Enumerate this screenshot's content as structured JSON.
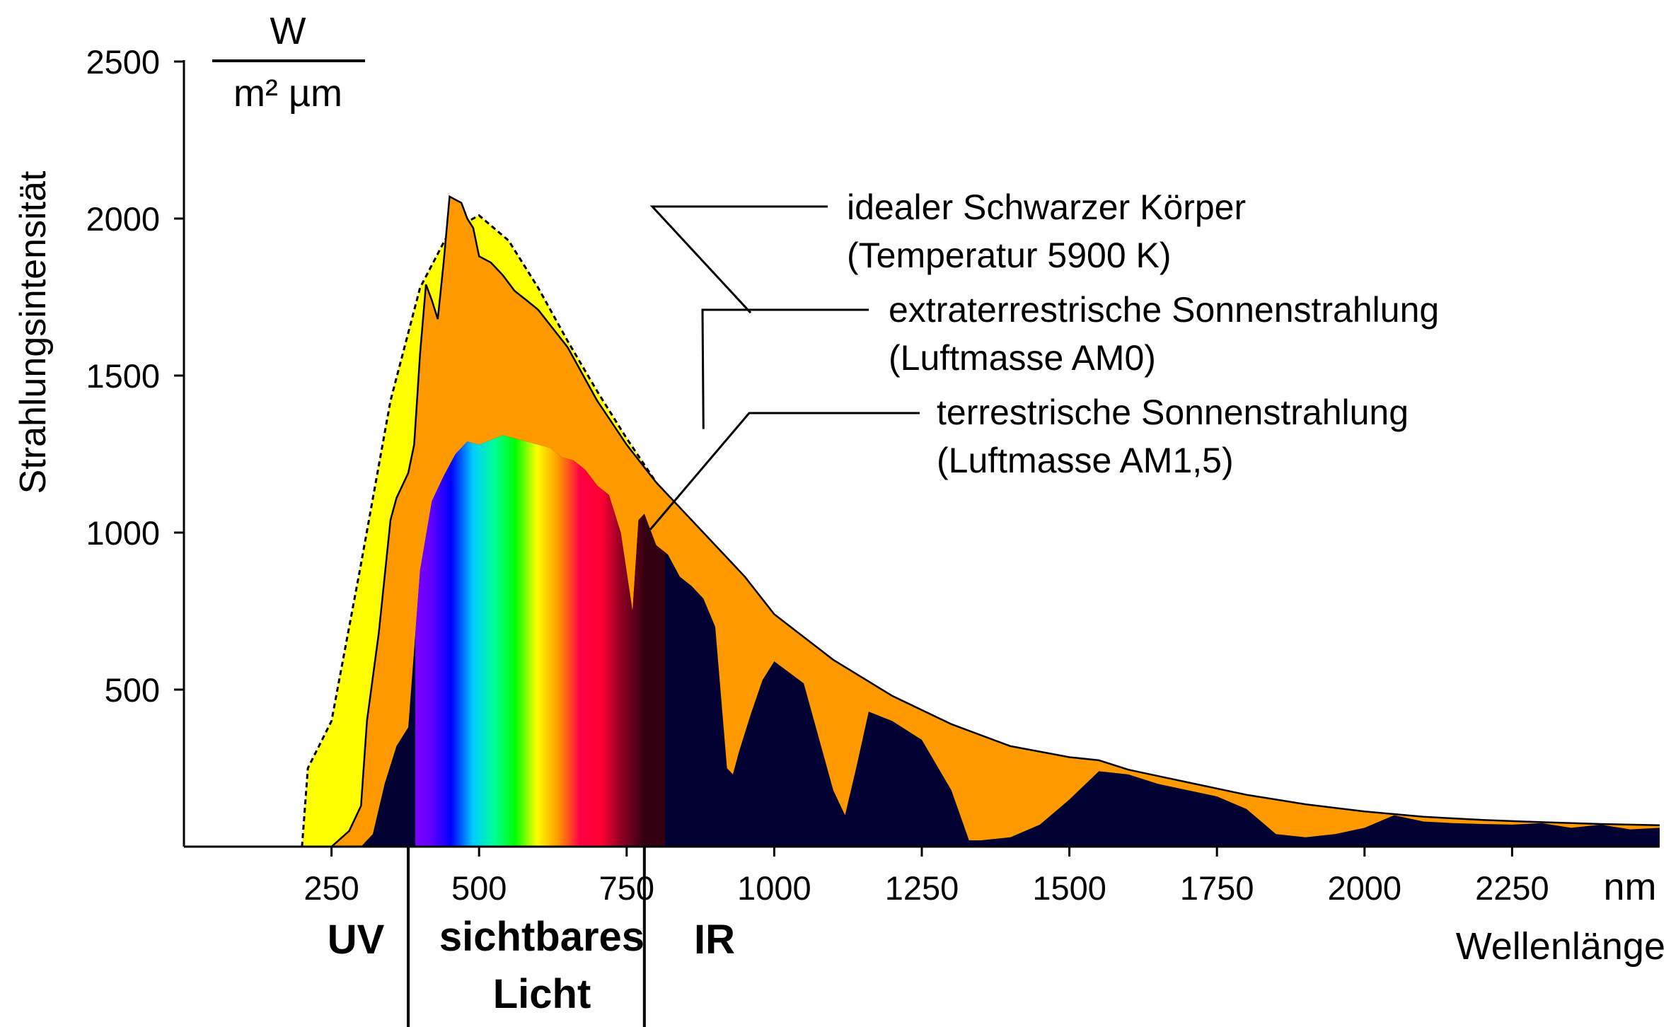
{
  "chart_data": {
    "type": "area",
    "title": "",
    "xlabel": "Wellenlänge",
    "xunit": "nm",
    "ylabel": "Strahlungsintensität",
    "yunit": {
      "numerator": "W",
      "denominator": "m² µm"
    },
    "xlim": [
      0,
      2500
    ],
    "ylim": [
      0,
      2500
    ],
    "x_ticks": [
      250,
      500,
      750,
      1000,
      1250,
      1500,
      1750,
      2000,
      2250
    ],
    "y_ticks": [
      500,
      1000,
      1500,
      2000,
      2500
    ],
    "grid": false,
    "colors": {
      "blackbody_fill": "#ffff00",
      "am0_fill": "#ff9900",
      "am15_fill": "#000033",
      "spectrum": [
        "#8800ff",
        "#6600ff",
        "#0000ff",
        "#00ccff",
        "#00ff99",
        "#00ff00",
        "#ffff00",
        "#ff9900",
        "#ff0044",
        "#ff0033",
        "#880022",
        "#330011"
      ]
    },
    "regions": [
      {
        "label": "UV",
        "to": 380
      },
      {
        "label_lines": [
          "sichtbares",
          "Licht"
        ],
        "from": 380,
        "to": 780
      },
      {
        "label": "IR",
        "from": 780
      }
    ],
    "annotations": [
      {
        "lines": [
          "idealer Schwarzer Körper",
          "(Temperatur 5900 K)"
        ],
        "points_to": [
          960,
          1700
        ]
      },
      {
        "lines": [
          "extraterrestrische Sonnenstrahlung",
          "(Luftmasse AM0)"
        ],
        "points_to": [
          880,
          1330
        ]
      },
      {
        "lines": [
          "terrestrische Sonnenstrahlung",
          "(Luftmasse AM1,5)"
        ],
        "points_to": [
          790,
          1010
        ]
      }
    ],
    "series": [
      {
        "name": "idealer Schwarzer Körper",
        "x": [
          200,
          210,
          250,
          300,
          350,
          400,
          450,
          500,
          550,
          600,
          650,
          700,
          750,
          800,
          850,
          900,
          950,
          1000
        ],
        "y": [
          0,
          250,
          400,
          900,
          1420,
          1780,
          1960,
          2010,
          1930,
          1780,
          1610,
          1450,
          1300,
          1160,
          1030,
          910,
          800,
          730
        ]
      },
      {
        "name": "extraterrestrische Sonnenstrahlung",
        "x": [
          250,
          280,
          300,
          310,
          330,
          350,
          360,
          380,
          390,
          400,
          410,
          420,
          430,
          440,
          450,
          460,
          470,
          480,
          490,
          500,
          520,
          540,
          560,
          580,
          600,
          650,
          700,
          750,
          800,
          850,
          900,
          950,
          1000,
          1100,
          1200,
          1300,
          1400,
          1500,
          1550,
          1600,
          1700,
          1800,
          1900,
          2000,
          2100,
          2200,
          2300,
          2400,
          2500
        ],
        "y": [
          0,
          50,
          130,
          400,
          680,
          1040,
          1110,
          1190,
          1280,
          1570,
          1790,
          1740,
          1680,
          1860,
          2070,
          2060,
          2050,
          2000,
          1970,
          1880,
          1860,
          1820,
          1770,
          1740,
          1710,
          1590,
          1420,
          1280,
          1160,
          1060,
          960,
          860,
          740,
          595,
          480,
          390,
          320,
          285,
          275,
          245,
          205,
          165,
          135,
          112,
          95,
          85,
          78,
          72,
          68
        ]
      },
      {
        "name": "terrestrische Sonnenstrahlung",
        "x": [
          300,
          320,
          340,
          360,
          380,
          400,
          420,
          440,
          460,
          480,
          500,
          520,
          540,
          560,
          580,
          600,
          620,
          640,
          660,
          680,
          700,
          720,
          740,
          760,
          770,
          780,
          800,
          820,
          840,
          860,
          880,
          900,
          920,
          930,
          940,
          960,
          980,
          1000,
          1050,
          1100,
          1120,
          1140,
          1160,
          1200,
          1250,
          1300,
          1330,
          1350,
          1400,
          1450,
          1500,
          1550,
          1600,
          1650,
          1700,
          1750,
          1800,
          1850,
          1900,
          1950,
          2000,
          2050,
          2100,
          2150,
          2200,
          2250,
          2300,
          2350,
          2400,
          2450,
          2500
        ],
        "y": [
          0,
          40,
          200,
          320,
          380,
          880,
          1100,
          1180,
          1250,
          1290,
          1280,
          1295,
          1310,
          1300,
          1290,
          1280,
          1270,
          1240,
          1230,
          1200,
          1150,
          1120,
          1000,
          750,
          1040,
          1060,
          960,
          930,
          860,
          830,
          790,
          700,
          250,
          230,
          300,
          420,
          530,
          590,
          520,
          180,
          100,
          260,
          430,
          400,
          340,
          180,
          20,
          20,
          30,
          70,
          150,
          240,
          230,
          200,
          180,
          160,
          120,
          40,
          30,
          40,
          60,
          100,
          80,
          75,
          72,
          70,
          75,
          60,
          70,
          55,
          60
        ]
      }
    ]
  }
}
